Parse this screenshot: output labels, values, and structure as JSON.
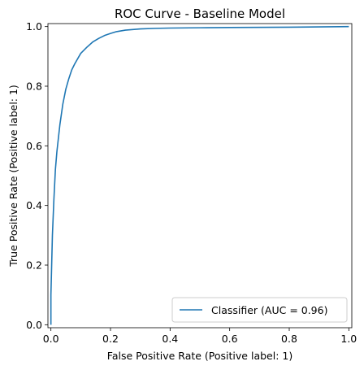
{
  "chart_data": {
    "type": "line",
    "title": "ROC Curve - Baseline Model",
    "xlabel": "False Positive Rate (Positive label: 1)",
    "ylabel": "True Positive Rate (Positive label: 1)",
    "xlim": [
      -0.01,
      1.01
    ],
    "ylim": [
      -0.01,
      1.01
    ],
    "x_ticks": [
      0.0,
      0.2,
      0.4,
      0.6,
      0.8,
      1.0
    ],
    "y_ticks": [
      0.0,
      0.2,
      0.4,
      0.6,
      0.8,
      1.0
    ],
    "x_tick_labels": [
      "0.0",
      "0.2",
      "0.4",
      "0.6",
      "0.8",
      "1.0"
    ],
    "y_tick_labels": [
      "0.0",
      "0.2",
      "0.4",
      "0.6",
      "0.8",
      "1.0"
    ],
    "grid": false,
    "legend_position": "lower-right",
    "series": [
      {
        "name": "Classifier (AUC = 0.96)",
        "color": "#1f77b4",
        "x": [
          0.0,
          0.0,
          0.005,
          0.01,
          0.015,
          0.02,
          0.03,
          0.04,
          0.05,
          0.06,
          0.07,
          0.08,
          0.1,
          0.12,
          0.14,
          0.16,
          0.18,
          0.2,
          0.22,
          0.25,
          0.3,
          0.35,
          0.4,
          0.5,
          0.6,
          0.8,
          1.0
        ],
        "y": [
          0.0,
          0.1,
          0.3,
          0.42,
          0.52,
          0.58,
          0.67,
          0.74,
          0.79,
          0.825,
          0.855,
          0.875,
          0.91,
          0.93,
          0.948,
          0.96,
          0.97,
          0.977,
          0.983,
          0.988,
          0.992,
          0.994,
          0.995,
          0.996,
          0.997,
          0.998,
          1.0
        ]
      }
    ]
  }
}
